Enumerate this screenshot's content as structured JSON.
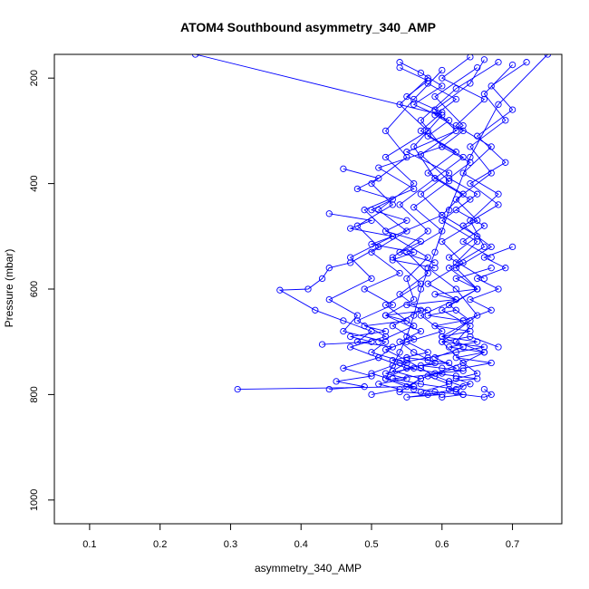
{
  "chart_data": {
    "type": "scatter",
    "title": "ATOM4 Southbound asymmetry_340_AMP",
    "xlabel": "asymmetry_340_AMP",
    "ylabel": "Pressure (mbar)",
    "xlim": [
      0.05,
      0.77
    ],
    "ylim": [
      1045,
      155
    ],
    "y_reversed": true,
    "x_ticks": [
      0.1,
      0.2,
      0.3,
      0.4,
      0.5,
      0.6,
      0.7
    ],
    "x_tick_labels": [
      "0.1",
      "0.2",
      "0.3",
      "0.4",
      "0.5",
      "0.6",
      "0.7"
    ],
    "y_ticks": [
      200,
      400,
      600,
      800,
      1000
    ],
    "y_tick_labels": [
      "200",
      "400",
      "600",
      "800",
      "1000"
    ],
    "grid": false,
    "legend": "none",
    "series": [
      {
        "mode": "lines+markers",
        "color": "#0000ff",
        "x": [
          0.66,
          0.64,
          0.59,
          0.62,
          0.55,
          0.61,
          0.57,
          0.6,
          0.53,
          0.58,
          0.55,
          0.56,
          0.52,
          0.57,
          0.54,
          0.56,
          0.59,
          0.55,
          0.6,
          0.53,
          0.57,
          0.62,
          0.58,
          0.55,
          0.6,
          0.54,
          0.57,
          0.63,
          0.6,
          0.65,
          0.62,
          0.58
        ],
        "y": [
          165,
          210,
          260,
          300,
          340,
          380,
          420,
          460,
          500,
          540,
          580,
          620,
          650,
          680,
          700,
          720,
          740,
          750,
          760,
          770,
          780,
          790,
          800,
          805,
          800,
          795,
          770,
          740,
          700,
          650,
          600,
          560
        ]
      },
      {
        "mode": "lines+markers",
        "color": "#0000ff",
        "x": [
          0.68,
          0.62,
          0.57,
          0.6,
          0.51,
          0.56,
          0.49,
          0.53,
          0.47,
          0.5,
          0.44,
          0.48,
          0.46,
          0.52,
          0.5,
          0.55,
          0.53,
          0.57,
          0.55,
          0.59,
          0.63,
          0.66,
          0.67,
          0.66
        ],
        "y": [
          170,
          220,
          280,
          330,
          370,
          410,
          450,
          500,
          540,
          580,
          620,
          650,
          680,
          700,
          720,
          740,
          755,
          770,
          785,
          795,
          800,
          805,
          800,
          790
        ]
      },
      {
        "mode": "lines+markers",
        "color": "#0000ff",
        "x": [
          0.64,
          0.6,
          0.66,
          0.62,
          0.67,
          0.63,
          0.68,
          0.64,
          0.66,
          0.61,
          0.65,
          0.6,
          0.64,
          0.62,
          0.66,
          0.63,
          0.65,
          0.62,
          0.64,
          0.61,
          0.63,
          0.6
        ],
        "y": [
          160,
          200,
          240,
          290,
          330,
          380,
          420,
          470,
          520,
          560,
          600,
          640,
          670,
          700,
          720,
          740,
          760,
          770,
          780,
          790,
          800,
          805
        ]
      },
      {
        "mode": "lines+markers",
        "color": "#0000ff",
        "x": [
          0.7,
          0.66,
          0.69,
          0.64,
          0.67,
          0.62,
          0.65,
          0.6,
          0.63,
          0.58,
          0.62,
          0.57,
          0.6,
          0.55,
          0.58,
          0.53,
          0.56,
          0.52,
          0.55,
          0.51,
          0.54,
          0.5
        ],
        "y": [
          175,
          230,
          280,
          330,
          380,
          430,
          470,
          510,
          550,
          590,
          620,
          650,
          680,
          700,
          720,
          735,
          750,
          760,
          770,
          780,
          790,
          800
        ]
      },
      {
        "mode": "lines+markers",
        "color": "#0000ff",
        "x": [
          0.6,
          0.56,
          0.52,
          0.55,
          0.5,
          0.53,
          0.48,
          0.51,
          0.47,
          0.44,
          0.43,
          0.41,
          0.37,
          0.42,
          0.46,
          0.5,
          0.48,
          0.53,
          0.51,
          0.55,
          0.52,
          0.56
        ],
        "y": [
          185,
          240,
          300,
          350,
          400,
          440,
          480,
          520,
          550,
          560,
          580,
          600,
          602,
          640,
          660,
          680,
          700,
          710,
          730,
          750,
          770,
          790
        ]
      },
      {
        "mode": "lines+markers",
        "color": "#0000ff",
        "x": [
          0.65,
          0.59,
          0.63,
          0.57,
          0.61,
          0.56,
          0.6,
          0.55,
          0.58,
          0.54,
          0.57,
          0.53,
          0.56,
          0.52,
          0.55,
          0.57,
          0.59,
          0.61,
          0.63,
          0.62
        ],
        "y": [
          180,
          235,
          290,
          345,
          395,
          445,
          490,
          530,
          570,
          610,
          640,
          670,
          695,
          715,
          735,
          750,
          765,
          775,
          785,
          795
        ]
      },
      {
        "mode": "lines+markers",
        "color": "#0000ff",
        "x": [
          0.72,
          0.67,
          0.7,
          0.65,
          0.69,
          0.64,
          0.68,
          0.63,
          0.67,
          0.62,
          0.65,
          0.61,
          0.64,
          0.6,
          0.63,
          0.59,
          0.62,
          0.58,
          0.61,
          0.57
        ],
        "y": [
          170,
          215,
          260,
          310,
          360,
          400,
          440,
          480,
          520,
          560,
          600,
          630,
          660,
          690,
          710,
          730,
          750,
          765,
          780,
          795
        ]
      },
      {
        "mode": "lines+markers",
        "color": "#0000ff",
        "x": [
          0.58,
          0.54,
          0.58,
          0.52,
          0.56,
          0.51,
          0.55,
          0.5,
          0.54,
          0.49,
          0.53,
          0.48,
          0.52,
          0.47,
          0.51,
          0.46,
          0.5,
          0.45,
          0.49,
          0.44
        ],
        "y": [
          200,
          250,
          300,
          350,
          400,
          450,
          490,
          530,
          570,
          600,
          630,
          660,
          690,
          710,
          730,
          750,
          765,
          775,
          785,
          790
        ]
      },
      {
        "mode": "lines+markers",
        "color": "#0000ff",
        "x": [
          0.25,
          0.6,
          0.56,
          0.59,
          0.54,
          0.58,
          0.53,
          0.57,
          0.52,
          0.56,
          0.51
        ],
        "y": [
          155,
          270,
          330,
          390,
          440,
          490,
          540,
          590,
          630,
          670,
          700
        ]
      },
      {
        "mode": "lines+markers",
        "color": "#0000ff",
        "x": [
          0.75,
          0.68,
          0.64,
          0.61,
          0.59,
          0.57,
          0.56,
          0.55,
          0.54,
          0.53,
          0.52
        ],
        "y": [
          155,
          250,
          350,
          450,
          530,
          600,
          650,
          690,
          720,
          745,
          770
        ]
      },
      {
        "mode": "lines+markers",
        "color": "#0000ff",
        "x": [
          0.31,
          0.56,
          0.5,
          0.54,
          0.58,
          0.62,
          0.66,
          0.6,
          0.64,
          0.68
        ],
        "y": [
          790,
          785,
          760,
          740,
          730,
          720,
          710,
          700,
          690,
          710
        ]
      },
      {
        "mode": "lines+markers",
        "color": "#0000ff",
        "x": [
          0.43,
          0.5,
          0.47,
          0.52,
          0.49,
          0.55,
          0.52,
          0.58,
          0.55,
          0.62,
          0.59,
          0.65,
          0.62,
          0.67
        ],
        "y": [
          705,
          700,
          690,
          680,
          670,
          660,
          650,
          640,
          630,
          620,
          610,
          600,
          580,
          560
        ]
      },
      {
        "mode": "lines+markers",
        "color": "#0000ff",
        "x": [
          0.54,
          0.57,
          0.6,
          0.56,
          0.61,
          0.58,
          0.63,
          0.59,
          0.64,
          0.6,
          0.65,
          0.62
        ],
        "y": [
          170,
          190,
          215,
          250,
          280,
          310,
          350,
          390,
          430,
          470,
          510,
          550
        ]
      },
      {
        "mode": "lines+markers",
        "color": "#0000ff",
        "x": [
          0.54,
          0.58,
          0.55,
          0.6,
          0.57,
          0.62,
          0.58,
          0.63,
          0.6,
          0.65,
          0.61,
          0.66
        ],
        "y": [
          180,
          205,
          235,
          265,
          300,
          340,
          380,
          420,
          460,
          500,
          540,
          580
        ]
      },
      {
        "mode": "lines+markers",
        "color": "#0000ff",
        "x": [
          0.58,
          0.62,
          0.59,
          0.63,
          0.6,
          0.64,
          0.61,
          0.65,
          0.62,
          0.66,
          0.63,
          0.67
        ],
        "y": [
          210,
          240,
          270,
          300,
          330,
          360,
          390,
          420,
          450,
          480,
          510,
          540
        ]
      },
      {
        "mode": "lines+markers",
        "color": "#0000ff",
        "x": [
          0.46,
          0.51,
          0.48,
          0.53,
          0.5,
          0.55,
          0.52,
          0.57,
          0.54,
          0.59
        ],
        "y": [
          372,
          390,
          410,
          430,
          450,
          470,
          490,
          510,
          530,
          550
        ]
      },
      {
        "mode": "lines+markers",
        "color": "#0000ff",
        "x": [
          0.44,
          0.5,
          0.47,
          0.53,
          0.5,
          0.56,
          0.53,
          0.59
        ],
        "y": [
          457,
          470,
          485,
          500,
          515,
          530,
          545,
          560
        ]
      },
      {
        "mode": "lines+markers",
        "color": "#0000ff",
        "x": [
          0.7,
          0.66,
          0.69,
          0.65,
          0.68,
          0.64,
          0.67,
          0.63
        ],
        "y": [
          520,
          540,
          560,
          580,
          600,
          620,
          640,
          660
        ]
      },
      {
        "mode": "lines+markers",
        "color": "#0000ff",
        "x": [
          0.62,
          0.58,
          0.63,
          0.59,
          0.64,
          0.6,
          0.65,
          0.61,
          0.66,
          0.62,
          0.67,
          0.63
        ],
        "y": [
          640,
          650,
          660,
          670,
          680,
          690,
          700,
          710,
          720,
          730,
          740,
          750
        ]
      },
      {
        "mode": "lines+markers",
        "color": "#0000ff",
        "x": [
          0.55,
          0.58,
          0.61,
          0.57,
          0.6,
          0.63,
          0.59,
          0.62,
          0.65,
          0.61
        ],
        "y": [
          730,
          735,
          740,
          745,
          750,
          755,
          760,
          765,
          770,
          775
        ]
      }
    ]
  }
}
